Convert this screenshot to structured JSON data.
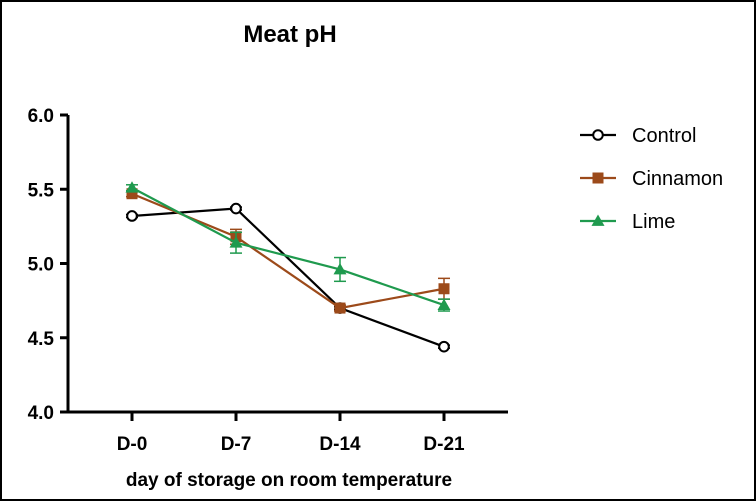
{
  "chart_data": {
    "type": "line",
    "title": "Meat pH",
    "xlabel": "day of storage on room temperature",
    "ylabel": "",
    "categories": [
      "D-0",
      "D-7",
      "D-14",
      "D-21"
    ],
    "ylim": [
      4.0,
      6.0
    ],
    "yticks": [
      4.0,
      4.5,
      5.0,
      5.5,
      6.0
    ],
    "ytick_labels": [
      "4.0",
      "4.5",
      "5.0",
      "5.5",
      "6.0"
    ],
    "grid": false,
    "legend_position": "right",
    "series": [
      {
        "name": "Control",
        "marker": "open-circle",
        "color": "#000000",
        "values": [
          5.32,
          5.37,
          4.7,
          4.44
        ],
        "errors": [
          0.01,
          0.01,
          0.01,
          0.01
        ]
      },
      {
        "name": "Cinnamon",
        "marker": "square",
        "color": "#9c4a1a",
        "values": [
          5.47,
          5.18,
          4.7,
          4.83
        ],
        "errors": [
          0.02,
          0.05,
          0.02,
          0.07
        ]
      },
      {
        "name": "Lime",
        "marker": "triangle",
        "color": "#1f9a4e",
        "values": [
          5.51,
          5.14,
          4.96,
          4.72
        ],
        "errors": [
          0.02,
          0.07,
          0.08,
          0.04
        ]
      }
    ]
  }
}
